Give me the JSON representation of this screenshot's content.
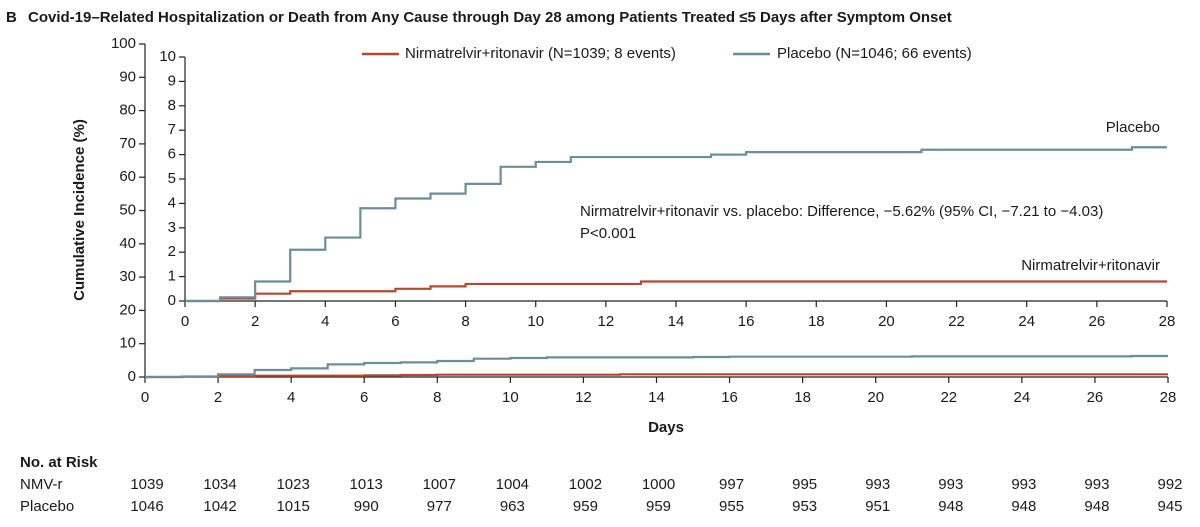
{
  "chart_data": [
    {
      "type": "line",
      "panel": "B",
      "title": "Covid-19–Related Hospitalization or Death from Any Cause through Day 28 among Patients Treated ≤5 Days after Symptom Onset",
      "xlabel": "Days",
      "ylabel": "Cumulative Incidence (%)",
      "step": true,
      "xlim": [
        0,
        28
      ],
      "xticks": [
        0,
        2,
        4,
        6,
        8,
        10,
        12,
        14,
        16,
        18,
        20,
        22,
        24,
        26,
        28
      ],
      "ylim": [
        0,
        100
      ],
      "yticks": [
        0,
        10,
        20,
        30,
        40,
        50,
        60,
        70,
        80,
        90,
        100
      ],
      "x": [
        0,
        1,
        2,
        3,
        4,
        5,
        6,
        7,
        8,
        9,
        10,
        11,
        13,
        15,
        16,
        21,
        27,
        28
      ],
      "series": [
        {
          "color": "#b5482e",
          "values": [
            0,
            0.1,
            0.3,
            0.4,
            0.4,
            0.4,
            0.5,
            0.6,
            0.7,
            0.7,
            0.7,
            0.7,
            0.8,
            0.8,
            0.8,
            0.8,
            0.8,
            0.8
          ]
        },
        {
          "color": "#6a8e9a",
          "values": [
            0,
            0.15,
            0.8,
            2.1,
            2.6,
            3.8,
            4.2,
            4.4,
            4.8,
            5.5,
            5.7,
            5.9,
            5.9,
            6.0,
            6.1,
            6.2,
            6.3,
            6.3
          ]
        }
      ]
    },
    {
      "type": "line",
      "step": true,
      "legend": "top",
      "xlim": [
        0,
        28
      ],
      "xticks": [
        0,
        2,
        4,
        6,
        8,
        10,
        12,
        14,
        16,
        18,
        20,
        22,
        24,
        26,
        28
      ],
      "ylim": [
        0,
        10
      ],
      "yticks": [
        0,
        1,
        2,
        3,
        4,
        5,
        6,
        7,
        8,
        9,
        10
      ],
      "x": [
        0,
        1,
        2,
        3,
        4,
        5,
        6,
        7,
        8,
        9,
        10,
        11,
        13,
        15,
        16,
        21,
        27,
        28
      ],
      "series": [
        {
          "name": "Nirmatrelvir+ritonavir (N=1039; 8 events)",
          "color": "#b5482e",
          "values": [
            0,
            0.1,
            0.3,
            0.4,
            0.4,
            0.4,
            0.5,
            0.6,
            0.7,
            0.7,
            0.7,
            0.7,
            0.8,
            0.8,
            0.8,
            0.8,
            0.8,
            0.8
          ]
        },
        {
          "name": "Placebo (N=1046; 66 events)",
          "color": "#6a8e9a",
          "values": [
            0,
            0.15,
            0.8,
            2.1,
            2.6,
            3.8,
            4.2,
            4.4,
            4.8,
            5.5,
            5.7,
            5.9,
            5.9,
            6.0,
            6.1,
            6.2,
            6.3,
            6.3
          ]
        }
      ],
      "annotations": [
        "Nirmatrelvir+ritonavir vs. placebo: Difference, −5.62% (95% CI, −7.21 to −4.03)",
        "P<0.001",
        "Placebo",
        "Nirmatrelvir+ritonavir"
      ]
    }
  ],
  "risk_table": {
    "title": "No. at Risk",
    "rows": [
      {
        "label": "NMV-r",
        "values": [
          1039,
          1034,
          1023,
          1013,
          1007,
          1004,
          1002,
          1000,
          997,
          995,
          993,
          993,
          993,
          993,
          992
        ]
      },
      {
        "label": "Placebo",
        "values": [
          1046,
          1042,
          1015,
          990,
          977,
          963,
          959,
          959,
          955,
          953,
          951,
          948,
          948,
          948,
          945
        ]
      }
    ]
  }
}
